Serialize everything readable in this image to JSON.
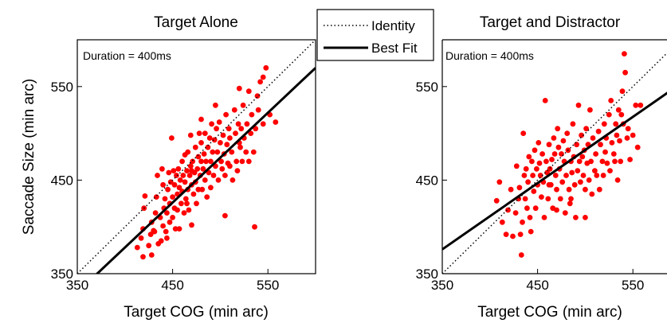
{
  "chart_data": [
    {
      "type": "scatter",
      "title": "Target Alone",
      "xlabel": "Target COG (min arc)",
      "ylabel": "Saccade Size (min arc)",
      "annotation": "Duration = 400ms",
      "xlim": [
        350,
        600
      ],
      "ylim": [
        350,
        600
      ],
      "xticks": [
        "350",
        "450",
        "550"
      ],
      "yticks": [
        "350",
        "450",
        "550"
      ],
      "point_color": "#ff0000",
      "identity_line": [
        [
          350,
          350
        ],
        [
          600,
          600
        ]
      ],
      "best_fit_line": [
        [
          350,
          330
        ],
        [
          600,
          570
        ]
      ],
      "points": [
        [
          413,
          378
        ],
        [
          417,
          388
        ],
        [
          419,
          368
        ],
        [
          419,
          398
        ],
        [
          420,
          420
        ],
        [
          421,
          433
        ],
        [
          425,
          380
        ],
        [
          427,
          392
        ],
        [
          428,
          370
        ],
        [
          428,
          405
        ],
        [
          430,
          396
        ],
        [
          431,
          395
        ],
        [
          432,
          415
        ],
        [
          433,
          432
        ],
        [
          434,
          455
        ],
        [
          435,
          382
        ],
        [
          437,
          410
        ],
        [
          438,
          385
        ],
        [
          439,
          462
        ],
        [
          440,
          445
        ],
        [
          440,
          401
        ],
        [
          441,
          420
        ],
        [
          442,
          430
        ],
        [
          443,
          395
        ],
        [
          444,
          388
        ],
        [
          444,
          415
        ],
        [
          445,
          440
        ],
        [
          446,
          458
        ],
        [
          447,
          425
        ],
        [
          447,
          405
        ],
        [
          448,
          448
        ],
        [
          449,
          495
        ],
        [
          450,
          432
        ],
        [
          450,
          410
        ],
        [
          451,
          460
        ],
        [
          452,
          420
        ],
        [
          452,
          445
        ],
        [
          453,
          398
        ],
        [
          454,
          455
        ],
        [
          455,
          435
        ],
        [
          455,
          418
        ],
        [
          456,
          462
        ],
        [
          457,
          442
        ],
        [
          457,
          398
        ],
        [
          458,
          450
        ],
        [
          459,
          425
        ],
        [
          460,
          470
        ],
        [
          460,
          438
        ],
        [
          461,
          455
        ],
        [
          462,
          415
        ],
        [
          463,
          477
        ],
        [
          463,
          448
        ],
        [
          464,
          430
        ],
        [
          465,
          460
        ],
        [
          466,
          480
        ],
        [
          466,
          440
        ],
        [
          467,
          418
        ],
        [
          468,
          455
        ],
        [
          469,
          498
        ],
        [
          469,
          465
        ],
        [
          470,
          445
        ],
        [
          470,
          402
        ],
        [
          471,
          470
        ],
        [
          472,
          435
        ],
        [
          473,
          458
        ],
        [
          474,
          485
        ],
        [
          474,
          448
        ],
        [
          475,
          425
        ],
        [
          476,
          462
        ],
        [
          477,
          475
        ],
        [
          477,
          440
        ],
        [
          478,
          500
        ],
        [
          479,
          455
        ],
        [
          480,
          470
        ],
        [
          480,
          490
        ],
        [
          481,
          440
        ],
        [
          482,
          462
        ],
        [
          483,
          478
        ],
        [
          484,
          450
        ],
        [
          484,
          500
        ],
        [
          485,
          470
        ],
        [
          486,
          432
        ],
        [
          487,
          485
        ],
        [
          488,
          458
        ],
        [
          489,
          495
        ],
        [
          490,
          470
        ],
        [
          490,
          442
        ],
        [
          491,
          510
        ],
        [
          492,
          480
        ],
        [
          493,
          455
        ],
        [
          494,
          493
        ],
        [
          495,
          465
        ],
        [
          496,
          505
        ],
        [
          497,
          480
        ],
        [
          498,
          450
        ],
        [
          499,
          512
        ],
        [
          500,
          490
        ],
        [
          501,
          470
        ],
        [
          502,
          462
        ],
        [
          503,
          498
        ],
        [
          504,
          478
        ],
        [
          505,
          412
        ],
        [
          506,
          520
        ],
        [
          507,
          488
        ],
        [
          508,
          468
        ],
        [
          509,
          505
        ],
        [
          510,
          495
        ],
        [
          512,
          480
        ],
        [
          513,
          450
        ],
        [
          515,
          525
        ],
        [
          516,
          500
        ],
        [
          517,
          470
        ],
        [
          518,
          460
        ],
        [
          519,
          510
        ],
        [
          520,
          548
        ],
        [
          521,
          485
        ],
        [
          522,
          505
        ],
        [
          523,
          470
        ],
        [
          524,
          530
        ],
        [
          525,
          495
        ],
        [
          527,
          480
        ],
        [
          528,
          510
        ],
        [
          530,
          545
        ],
        [
          532,
          500
        ],
        [
          533,
          520
        ],
        [
          535,
          480
        ],
        [
          536,
          400
        ],
        [
          537,
          505
        ],
        [
          539,
          540
        ],
        [
          540,
          525
        ],
        [
          542,
          555
        ],
        [
          545,
          510
        ],
        [
          548,
          570
        ],
        [
          552,
          520
        ],
        [
          558,
          512
        ],
        [
          545,
          560
        ],
        [
          530,
          470
        ],
        [
          520,
          490
        ],
        [
          505,
          455
        ],
        [
          470,
          460
        ],
        [
          465,
          425
        ],
        [
          480,
          515
        ],
        [
          495,
          530
        ],
        [
          510,
          465
        ]
      ]
    },
    {
      "type": "scatter",
      "title": "Target and Distractor",
      "xlabel": "Target COG (min arc)",
      "ylabel": "",
      "annotation": "Duration = 400ms",
      "xlim": [
        350,
        600
      ],
      "ylim": [
        350,
        600
      ],
      "xticks": [
        "350",
        "450",
        "550"
      ],
      "yticks": [
        "350",
        "450",
        "550"
      ],
      "point_color": "#ff0000",
      "identity_line": [
        [
          350,
          350
        ],
        [
          600,
          600
        ]
      ],
      "best_fit_line": [
        [
          350,
          376
        ],
        [
          600,
          553
        ]
      ],
      "points": [
        [
          407,
          428
        ],
        [
          410,
          448
        ],
        [
          413,
          405
        ],
        [
          417,
          392
        ],
        [
          419,
          418
        ],
        [
          422,
          440
        ],
        [
          424,
          390
        ],
        [
          427,
          415
        ],
        [
          428,
          465
        ],
        [
          430,
          430
        ],
        [
          431,
          442
        ],
        [
          432,
          392
        ],
        [
          433,
          370
        ],
        [
          434,
          405
        ],
        [
          435,
          500
        ],
        [
          436,
          455
        ],
        [
          437,
          430
        ],
        [
          438,
          462
        ],
        [
          439,
          420
        ],
        [
          440,
          448
        ],
        [
          441,
          475
        ],
        [
          442,
          410
        ],
        [
          443,
          395
        ],
        [
          444,
          470
        ],
        [
          445,
          455
        ],
        [
          446,
          438
        ],
        [
          447,
          482
        ],
        [
          448,
          420
        ],
        [
          449,
          462
        ],
        [
          450,
          445
        ],
        [
          451,
          490
        ],
        [
          452,
          468
        ],
        [
          453,
          455
        ],
        [
          454,
          432
        ],
        [
          455,
          478
        ],
        [
          456,
          448
        ],
        [
          457,
          410
        ],
        [
          458,
          535
        ],
        [
          459,
          470
        ],
        [
          460,
          458
        ],
        [
          461,
          430
        ],
        [
          462,
          488
        ],
        [
          463,
          462
        ],
        [
          464,
          445
        ],
        [
          465,
          472
        ],
        [
          466,
          420
        ],
        [
          467,
          495
        ],
        [
          468,
          478
        ],
        [
          469,
          455
        ],
        [
          470,
          440
        ],
        [
          471,
          505
        ],
        [
          472,
          485
        ],
        [
          473,
          462
        ],
        [
          474,
          430
        ],
        [
          475,
          478
        ],
        [
          476,
          448
        ],
        [
          477,
          492
        ],
        [
          478,
          470
        ],
        [
          479,
          415
        ],
        [
          480,
          455
        ],
        [
          481,
          500
        ],
        [
          482,
          482
        ],
        [
          483,
          440
        ],
        [
          484,
          425
        ],
        [
          485,
          470
        ],
        [
          486,
          458
        ],
        [
          487,
          510
        ],
        [
          488,
          475
        ],
        [
          489,
          445
        ],
        [
          490,
          410
        ],
        [
          491,
          488
        ],
        [
          492,
          460
        ],
        [
          493,
          530
        ],
        [
          494,
          470
        ],
        [
          495,
          448
        ],
        [
          496,
          498
        ],
        [
          497,
          475
        ],
        [
          498,
          455
        ],
        [
          499,
          482
        ],
        [
          500,
          440
        ],
        [
          501,
          505
        ],
        [
          502,
          468
        ],
        [
          503,
          488
        ],
        [
          504,
          450
        ],
        [
          505,
          525
        ],
        [
          506,
          470
        ],
        [
          507,
          435
        ],
        [
          508,
          495
        ],
        [
          510,
          460
        ],
        [
          511,
          478
        ],
        [
          512,
          455
        ],
        [
          514,
          502
        ],
        [
          515,
          440
        ],
        [
          516,
          488
        ],
        [
          518,
          470
        ],
        [
          519,
          455
        ],
        [
          520,
          510
        ],
        [
          521,
          480
        ],
        [
          522,
          495
        ],
        [
          523,
          468
        ],
        [
          525,
          520
        ],
        [
          526,
          460
        ],
        [
          527,
          535
        ],
        [
          528,
          490
        ],
        [
          530,
          478
        ],
        [
          531,
          470
        ],
        [
          532,
          510
        ],
        [
          533,
          498
        ],
        [
          534,
          450
        ],
        [
          535,
          525
        ],
        [
          536,
          492
        ],
        [
          537,
          470
        ],
        [
          538,
          520
        ],
        [
          539,
          545
        ],
        [
          540,
          510
        ],
        [
          541,
          585
        ],
        [
          542,
          565
        ],
        [
          544,
          495
        ],
        [
          545,
          505
        ],
        [
          547,
          472
        ],
        [
          550,
          498
        ],
        [
          553,
          530
        ],
        [
          555,
          485
        ],
        [
          558,
          530
        ],
        [
          485,
          430
        ],
        [
          470,
          418
        ],
        [
          462,
          445
        ],
        [
          500,
          410
        ]
      ]
    }
  ],
  "legend": {
    "identity_label": "Identity",
    "best_fit_label": "Best Fit"
  }
}
